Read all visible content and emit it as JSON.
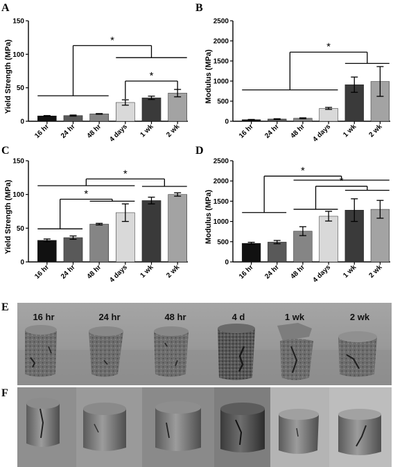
{
  "panels": [
    "A",
    "B",
    "C",
    "D",
    "E",
    "F"
  ],
  "chart_data": [
    {
      "panel": "A",
      "type": "bar",
      "ylabel": "Yield Strength (MPa)",
      "xlabel": "",
      "categories": [
        "16 hr",
        "24 hr",
        "48 hr",
        "4 days",
        "1 wk",
        "2 wk"
      ],
      "values": [
        8,
        8.5,
        11,
        28,
        35,
        42
      ],
      "errors": [
        0.5,
        0.8,
        0.5,
        4,
        2.5,
        5.5
      ],
      "colors": [
        "#111111",
        "#595959",
        "#858585",
        "#d9d9d9",
        "#3a3a3a",
        "#a3a3a3"
      ],
      "ylim": [
        0,
        150
      ],
      "yticks": [
        0,
        50,
        100,
        150
      ],
      "yticks_fmt": "plain",
      "significance": [
        {
          "star": "*",
          "level": 113,
          "bar": [
            0,
            5
          ],
          "group": [
            [
              0,
              2
            ],
            [
              3,
              5
            ]
          ],
          "glevels": [
            38,
            95
          ]
        },
        {
          "star": "*",
          "level": 60,
          "bar": [
            3,
            5
          ],
          "drop": [
            33,
            48
          ]
        }
      ]
    },
    {
      "panel": "B",
      "type": "bar",
      "ylabel": "Modulus (MPa)",
      "xlabel": "",
      "categories": [
        "16 hr",
        "24 hr",
        "48 hr",
        "4 days",
        "1 wk",
        "2 wk"
      ],
      "values": [
        40,
        55,
        75,
        320,
        910,
        990
      ],
      "errors": [
        5,
        8,
        10,
        25,
        190,
        370
      ],
      "colors": [
        "#111111",
        "#595959",
        "#858585",
        "#d9d9d9",
        "#3a3a3a",
        "#a3a3a3"
      ],
      "ylim": [
        0,
        2500
      ],
      "yticks": [
        0,
        500,
        1000,
        1500,
        2000,
        2500
      ],
      "yticks_fmt": "plain",
      "significance": [
        {
          "star": "*",
          "level": 1720,
          "bar": [
            0,
            5
          ],
          "group": [
            [
              0,
              3
            ],
            [
              4,
              5
            ]
          ],
          "glevels": [
            780,
            1440
          ]
        }
      ]
    },
    {
      "panel": "C",
      "type": "bar",
      "ylabel": "Yield Strength (MPa)",
      "xlabel": "",
      "categories": [
        "16 hr",
        "24 hr",
        "48 hr",
        "4 days",
        "1 wk",
        "2 wk"
      ],
      "values": [
        32,
        36,
        56,
        73,
        91,
        100
      ],
      "errors": [
        2,
        2.5,
        1.2,
        13,
        5,
        2.5
      ],
      "colors": [
        "#111111",
        "#595959",
        "#858585",
        "#d9d9d9",
        "#3a3a3a",
        "#a3a3a3"
      ],
      "ylim": [
        0,
        150
      ],
      "yticks": [
        0,
        50,
        100,
        150
      ],
      "yticks_fmt": "plain",
      "significance": [
        {
          "star": "*",
          "level": 123,
          "bar": [
            0,
            5
          ],
          "group": [
            [
              0,
              3
            ],
            [
              4,
              5
            ]
          ],
          "glevels": [
            113,
            112
          ]
        },
        {
          "star": "*",
          "level": 93,
          "bar": [
            0,
            3
          ],
          "group": [
            [
              0,
              1
            ],
            [
              2,
              3
            ]
          ],
          "glevels": [
            49,
            90
          ]
        }
      ]
    },
    {
      "panel": "D",
      "type": "bar",
      "ylabel": "Modulus (MPa)",
      "xlabel": "",
      "categories": [
        "16 hr",
        "24 hr",
        "48 hr",
        "4 days",
        "1 wk",
        "2 wk"
      ],
      "values": [
        460,
        490,
        760,
        1130,
        1280,
        1300
      ],
      "errors": [
        25,
        40,
        110,
        120,
        280,
        220
      ],
      "colors": [
        "#111111",
        "#595959",
        "#858585",
        "#d9d9d9",
        "#3a3a3a",
        "#a3a3a3"
      ],
      "ylim": [
        0,
        2500
      ],
      "yticks": [
        0,
        500,
        1000,
        1500,
        2000,
        2500
      ],
      "yticks_fmt": "plain",
      "significance": [
        {
          "star": "*",
          "level": 2120,
          "bar": [
            0,
            5
          ],
          "group": [
            [
              0,
              1
            ],
            [
              2,
              5
            ]
          ],
          "glevels": [
            1220,
            2020
          ]
        },
        {
          "star": "*",
          "level": 1870,
          "bar": [
            2,
            5
          ],
          "group": [
            [
              2,
              3
            ],
            [
              4,
              5
            ]
          ],
          "glevels": [
            1300,
            1770
          ]
        }
      ]
    }
  ],
  "photos": {
    "E": {
      "labels": [
        "16 hr",
        "24 hr",
        "48 hr",
        "4 d",
        "1 wk",
        "2 wk"
      ]
    },
    "F": {
      "labels": []
    }
  }
}
